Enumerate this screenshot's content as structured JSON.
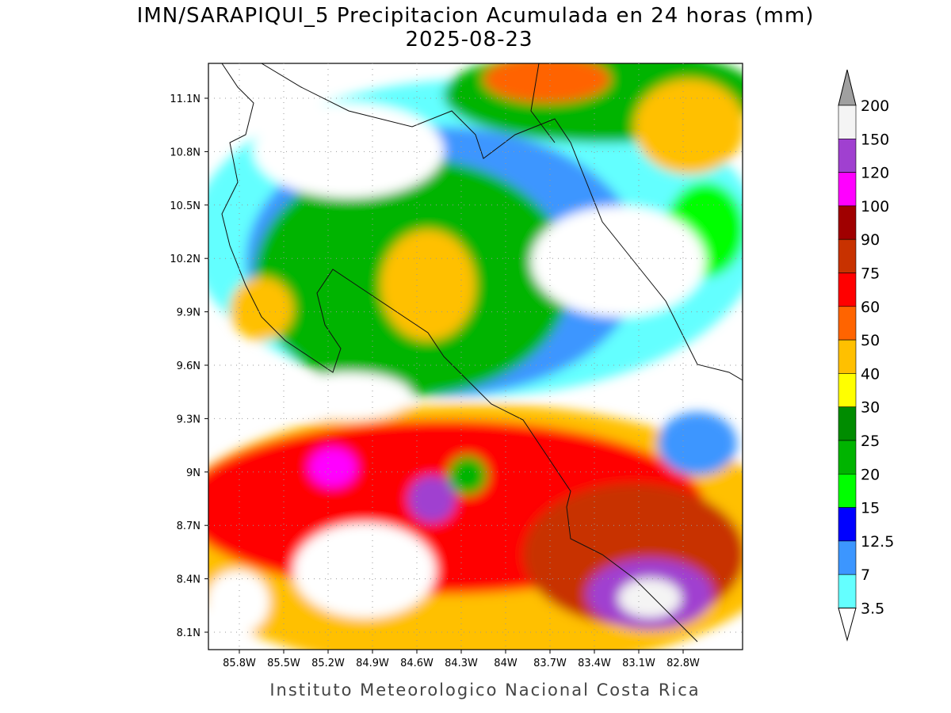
{
  "title": "IMN/SARAPIQUI_5 Precipitacion Acumulada en 24 horas (mm)",
  "subtitle": "2025-08-23",
  "map": {
    "lat_labels": [
      "11.1N",
      "10.8N",
      "10.5N",
      "10.2N",
      "9.9N",
      "9.6N",
      "9.3N",
      "9N",
      "8.7N",
      "8.4N",
      "8.1N"
    ],
    "lon_labels": [
      "85.8W",
      "85.5W",
      "85.2W",
      "84.9W",
      "84.6W",
      "84.3W",
      "84W",
      "83.7W",
      "83.4W",
      "83.1W",
      "82.8W"
    ]
  },
  "colorbar": {
    "levels": [
      200,
      150,
      120,
      100,
      90,
      75,
      60,
      50,
      40,
      30,
      25,
      20,
      15,
      12.5,
      7,
      3.5
    ],
    "colors": [
      "#f4f4f4",
      "#a040d0",
      "#ff00ff",
      "#a00000",
      "#c83200",
      "#ff0000",
      "#ff6400",
      "#ffc000",
      "#ffff00",
      "#008c00",
      "#00b400",
      "#00ff00",
      "#0000ff",
      "#3c96ff",
      "#64ffff"
    ],
    "over_color": "#a0a0a0",
    "under_color": "#ffffff"
  },
  "footer": "Instituto Meteorologico Nacional Costa Rica"
}
